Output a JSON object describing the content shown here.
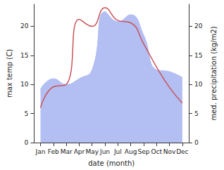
{
  "chart_data": {
    "type": "line",
    "categories": [
      "Jan",
      "Feb",
      "Mar",
      "Apr",
      "May",
      "Jun",
      "Jul",
      "Aug",
      "Sep",
      "Oct",
      "Nov",
      "Dec"
    ],
    "x_label": "date (month)",
    "y_label": "max temp (C)",
    "y2_label": "med. precipitation (kg/m2)",
    "ylim": [
      0,
      23.8
    ],
    "yticks": [
      0,
      5,
      10,
      15,
      20
    ],
    "y2lim": [
      0,
      23.8
    ],
    "y2ticks": [
      0,
      5,
      10,
      15,
      20
    ],
    "grid": false,
    "series": [
      {
        "type": "area",
        "axis": "y2",
        "color": "#b3bef2",
        "values": [
          9.2,
          11,
          10,
          11,
          12.5,
          22.5,
          20.8,
          22,
          18.5,
          12.5,
          12.2,
          11.2
        ]
      },
      {
        "type": "line",
        "axis": "y",
        "color": "#c9545a",
        "values": [
          6,
          9.6,
          10,
          21.2,
          20,
          23.2,
          21,
          20.6,
          17,
          13,
          9.5,
          6.8
        ]
      }
    ]
  }
}
